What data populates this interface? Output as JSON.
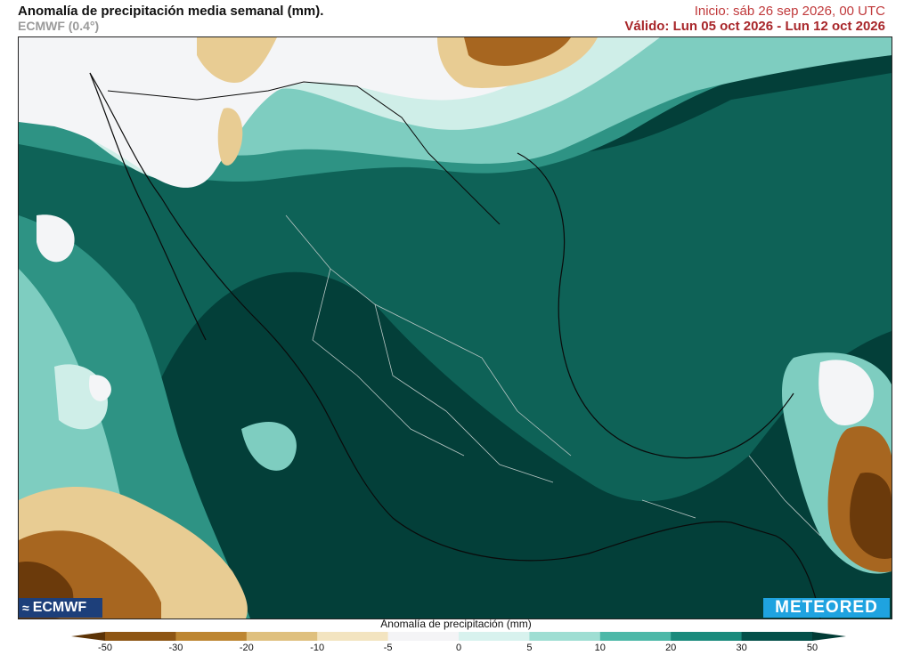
{
  "header": {
    "title": "Anomalía de precipitación media semanal (mm).",
    "model": "ECMWF (0.4°)",
    "init": "Inicio:  sáb 26 sep 2026, 00 UTC",
    "valid": "Válido: Lun 05 oct 2026 - Lun 12 oct 2026"
  },
  "logos": {
    "left": "ECMWF",
    "right": "METEORED"
  },
  "legend": {
    "title": "Anomalía de precipitación (mm)",
    "ticks": [
      "-50",
      "-30",
      "-20",
      "-10",
      "-5",
      "0",
      "5",
      "10",
      "20",
      "30",
      "50"
    ],
    "colors": [
      "#5c3306",
      "#8e5614",
      "#bd8632",
      "#dfc07e",
      "#f3e4c0",
      "#f4f4f6",
      "#d8f2ee",
      "#9fded3",
      "#4db8a8",
      "#1a8a7c",
      "#04504a",
      "#023c36"
    ]
  },
  "map": {
    "colors": {
      "ocean_deep": "#033f39",
      "dark": "#0e6257",
      "mid": "#2e9384",
      "light": "#7ecdc0",
      "pale": "#cfeee8",
      "white": "#f4f5f7",
      "tan": "#e8cc93",
      "brown": "#a76620",
      "dark_brown": "#6b3a0b",
      "border": "#b8c6c4"
    }
  }
}
